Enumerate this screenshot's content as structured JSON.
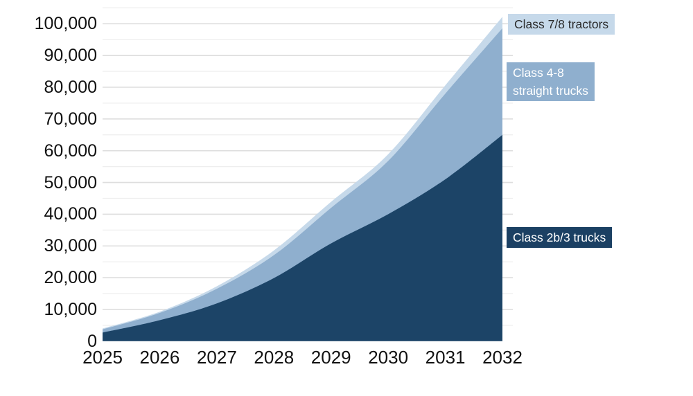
{
  "chart_data": {
    "type": "area",
    "stacked": true,
    "title": "",
    "xlabel": "",
    "ylabel": "",
    "x": [
      2025,
      2026,
      2027,
      2028,
      2029,
      2030,
      2031,
      2032
    ],
    "x_tick_labels": [
      "2025",
      "2026",
      "2027",
      "2028",
      "2029",
      "2030",
      "2031",
      "2032"
    ],
    "y_tick_labels": [
      "0",
      "10,000",
      "20,000",
      "30,000",
      "40,000",
      "50,000",
      "60,000",
      "70,000",
      "80,000",
      "90,000",
      "100,000"
    ],
    "ylim": [
      0,
      105000
    ],
    "y_major_step": 10000,
    "y_minor_step": 5000,
    "grid": "horizontal",
    "legend_position": "right-overlay",
    "series": [
      {
        "name": "Class 2b/3 trucks",
        "color": "#1c4467",
        "values": [
          2700,
          6600,
          11900,
          19900,
          30800,
          40000,
          51000,
          65000
        ]
      },
      {
        "name": "Class 4-8 straight trucks",
        "color": "#8fafce",
        "values": [
          1000,
          2300,
          4600,
          7200,
          11200,
          16800,
          27000,
          33600
        ]
      },
      {
        "name": "Class 7/8 tractors",
        "color": "#c6d9ea",
        "values": [
          300,
          400,
          800,
          1500,
          1900,
          2100,
          2600,
          3600
        ]
      }
    ],
    "stacked_totals": [
      4000,
      9300,
      17300,
      28600,
      43900,
      58900,
      80600,
      102200
    ]
  },
  "legend": {
    "tractors": {
      "text": "Class 7/8 tractors",
      "bg": "#c6d9ea",
      "fg": "#2b2b2b"
    },
    "straight": {
      "line1": "Class 4-8",
      "line2": "straight trucks",
      "bg": "#8fafce",
      "fg": "#ffffff"
    },
    "trucks2b3": {
      "text": "Class 2b/3 trucks",
      "bg": "#1b4063",
      "fg": "#ffffff"
    }
  },
  "colors": {
    "background": "#ffffff",
    "grid_major": "#dedede",
    "grid_minor": "#eeeeee",
    "axis_text": "#111111",
    "area_dark": "#1c4467",
    "area_medium": "#8fafce",
    "area_light": "#c6d9ea"
  }
}
